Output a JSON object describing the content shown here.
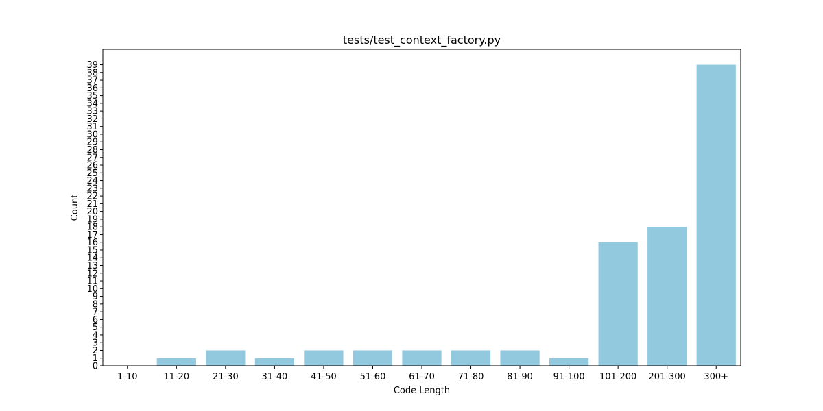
{
  "chart_data": {
    "type": "bar",
    "title": "tests/test_context_factory.py",
    "xlabel": "Code Length",
    "ylabel": "Count",
    "categories": [
      "1-10",
      "11-20",
      "21-30",
      "31-40",
      "41-50",
      "51-60",
      "61-70",
      "71-80",
      "81-90",
      "91-100",
      "101-200",
      "201-300",
      "300+"
    ],
    "values": [
      0,
      1,
      2,
      1,
      2,
      2,
      2,
      2,
      2,
      1,
      16,
      18,
      39
    ],
    "ylim": [
      0,
      41
    ],
    "yticks": [
      0,
      1,
      2,
      3,
      4,
      5,
      6,
      7,
      8,
      9,
      10,
      11,
      12,
      13,
      14,
      15,
      16,
      17,
      18,
      19,
      20,
      21,
      22,
      23,
      24,
      25,
      26,
      27,
      28,
      29,
      30,
      31,
      32,
      33,
      34,
      35,
      36,
      37,
      38,
      39
    ],
    "bar_color": "#92c9df",
    "grid": false,
    "legend": "none"
  }
}
